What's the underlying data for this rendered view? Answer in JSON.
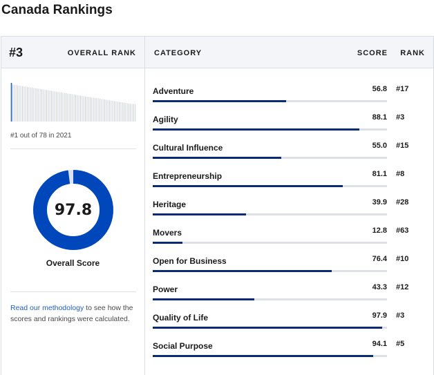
{
  "page_title": "Canada Rankings",
  "header": {
    "overall_rank": "#3",
    "overall_rank_label": "OVERALL RANK",
    "category_label": "CATEGORY",
    "score_label": "SCORE",
    "rank_label": "RANK"
  },
  "sidebar": {
    "rank_caption": "#1 out of 78 in 2021",
    "overall_score": "97.8",
    "overall_score_value": 97.8,
    "overall_score_label": "Overall Score",
    "methodology_link": "Read our methodology",
    "methodology_text": " to see how the scores and rankings were calculated."
  },
  "colors": {
    "donut": "#0047bb",
    "donut_track": "#dde3ee",
    "bar": "#0a2a73",
    "spark_highlight": "#1f5fbf",
    "spark_bar": "#c7ccd3"
  },
  "categories": [
    {
      "name": "Adventure",
      "score": "56.8",
      "rank": "#17",
      "value": 56.8
    },
    {
      "name": "Agility",
      "score": "88.1",
      "rank": "#3",
      "value": 88.1
    },
    {
      "name": "Cultural Influence",
      "score": "55.0",
      "rank": "#15",
      "value": 55.0
    },
    {
      "name": "Entrepreneurship",
      "score": "81.1",
      "rank": "#8",
      "value": 81.1
    },
    {
      "name": "Heritage",
      "score": "39.9",
      "rank": "#28",
      "value": 39.9
    },
    {
      "name": "Movers",
      "score": "12.8",
      "rank": "#63",
      "value": 12.8
    },
    {
      "name": "Open for Business",
      "score": "76.4",
      "rank": "#10",
      "value": 76.4
    },
    {
      "name": "Power",
      "score": "43.3",
      "rank": "#12",
      "value": 43.3
    },
    {
      "name": "Quality of Life",
      "score": "97.9",
      "rank": "#3",
      "value": 97.9
    },
    {
      "name": "Social Purpose",
      "score": "94.1",
      "rank": "#5",
      "value": 94.1
    }
  ]
}
